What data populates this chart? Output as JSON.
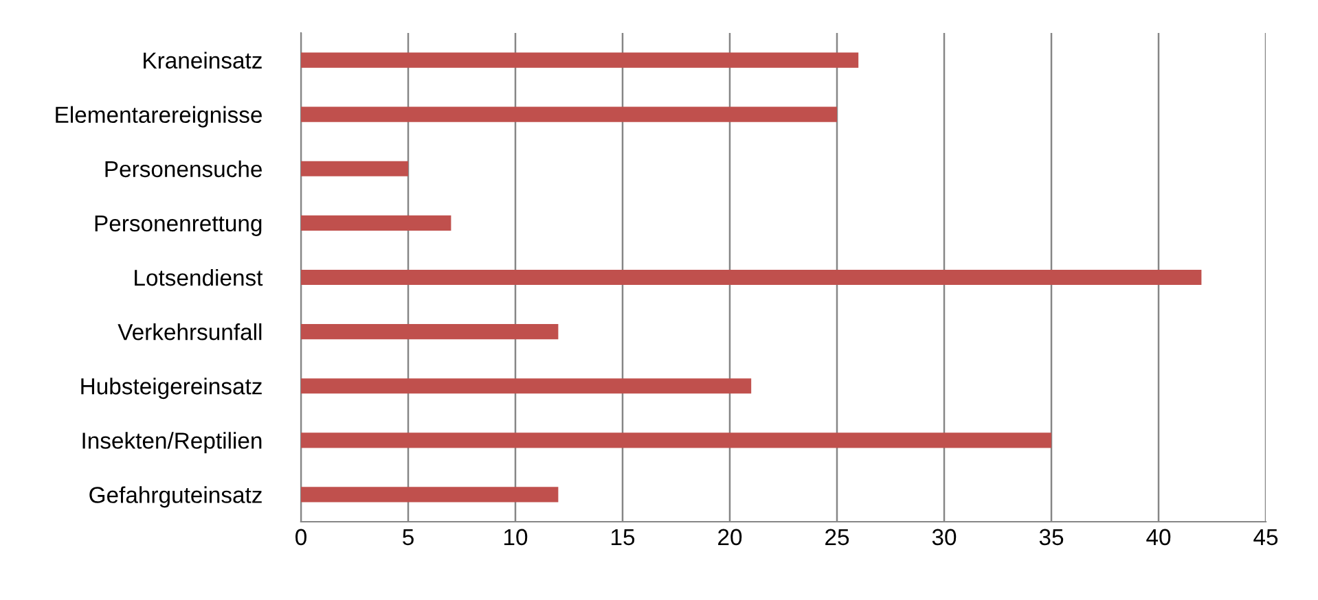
{
  "chart_data": {
    "type": "bar",
    "orientation": "horizontal",
    "categories": [
      "Kraneinsatz",
      "Elementarereignisse",
      "Personensuche",
      "Personenrettung",
      "Lotsendienst",
      "Verkehrsunfall",
      "Hubsteigereinsatz",
      "Insekten/Reptilien",
      "Gefahrguteinsatz"
    ],
    "values": [
      26,
      25,
      5,
      7,
      42,
      12,
      21,
      35,
      12
    ],
    "color": "#c0504d",
    "xlim": [
      0,
      45
    ],
    "xticks": [
      0,
      5,
      10,
      15,
      20,
      25,
      30,
      35,
      40,
      45
    ],
    "grid": "x",
    "legend": false
  }
}
